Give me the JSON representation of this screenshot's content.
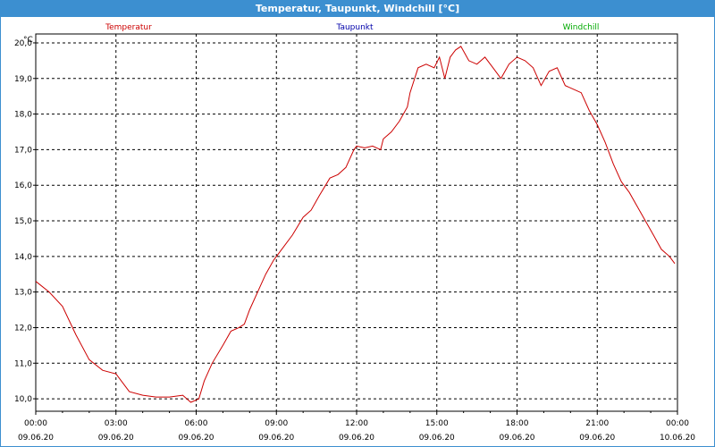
{
  "window": {
    "title": "Temperatur, Taupunkt, Windchill [°C]"
  },
  "colors": {
    "titlebar": "#3c8fd0",
    "temperature": "#cc0000",
    "dewpoint": "#0000aa",
    "windchill": "#00aa00",
    "grid": "#000000"
  },
  "chart_data": {
    "type": "line",
    "title": "Temperatur, Taupunkt, Windchill [°C]",
    "ylabel": "°C",
    "ylim": [
      9.65,
      20.25
    ],
    "xlim": [
      0,
      24
    ],
    "y_ticks": [
      "10,0",
      "11,0",
      "12,0",
      "13,0",
      "14,0",
      "15,0",
      "16,0",
      "17,0",
      "18,0",
      "19,0",
      "20,0"
    ],
    "y_tick_values": [
      10,
      11,
      12,
      13,
      14,
      15,
      16,
      17,
      18,
      19,
      20
    ],
    "x_ticks": [
      {
        "time": "00:00",
        "date": "09.06.20"
      },
      {
        "time": "03:00",
        "date": "09.06.20"
      },
      {
        "time": "06:00",
        "date": "09.06.20"
      },
      {
        "time": "09:00",
        "date": "09.06.20"
      },
      {
        "time": "12:00",
        "date": "09.06.20"
      },
      {
        "time": "15:00",
        "date": "09.06.20"
      },
      {
        "time": "18:00",
        "date": "09.06.20"
      },
      {
        "time": "21:00",
        "date": "09.06.20"
      },
      {
        "time": "00:00",
        "date": "10.06.20"
      }
    ],
    "grid": true,
    "legend": [
      "Temperatur",
      "Taupunkt",
      "Windchill"
    ],
    "series": [
      {
        "name": "Temperatur",
        "x": [
          0,
          0.5,
          1,
          1.5,
          2,
          2.5,
          3,
          3.5,
          4,
          4.5,
          5,
          5.5,
          5.8,
          6.1,
          6.3,
          6.6,
          7,
          7.3,
          7.6,
          7.8,
          8,
          8.3,
          8.6,
          8.9,
          9,
          9.3,
          9.6,
          10,
          10.3,
          10.6,
          11,
          11.3,
          11.6,
          11.9,
          12,
          12.3,
          12.6,
          12.9,
          13,
          13.3,
          13.6,
          13.9,
          14,
          14.3,
          14.6,
          14.9,
          15.1,
          15.3,
          15.5,
          15.7,
          15.9,
          16.2,
          16.5,
          16.8,
          17.1,
          17.4,
          17.7,
          18,
          18.3,
          18.6,
          18.9,
          19.2,
          19.5,
          19.8,
          20.1,
          20.4,
          20.7,
          21,
          21.3,
          21.6,
          21.9,
          22.2,
          22.5,
          22.8,
          23.1,
          23.4,
          23.7,
          23.9
        ],
        "values": [
          13.3,
          13.0,
          12.6,
          11.8,
          11.1,
          10.8,
          10.7,
          10.2,
          10.1,
          10.05,
          10.05,
          10.1,
          9.9,
          10.0,
          10.5,
          11.0,
          11.5,
          11.9,
          12.0,
          12.1,
          12.5,
          13.0,
          13.5,
          13.9,
          14.0,
          14.3,
          14.6,
          15.1,
          15.3,
          15.7,
          16.2,
          16.3,
          16.5,
          17.0,
          17.1,
          17.05,
          17.1,
          17.0,
          17.3,
          17.5,
          17.8,
          18.2,
          18.6,
          19.3,
          19.4,
          19.3,
          19.6,
          19.0,
          19.6,
          19.8,
          19.9,
          19.5,
          19.4,
          19.6,
          19.3,
          19.0,
          19.4,
          19.6,
          19.5,
          19.3,
          18.8,
          19.2,
          19.3,
          18.8,
          18.7,
          18.6,
          18.1,
          17.7,
          17.2,
          16.6,
          16.1,
          15.8,
          15.4,
          15.0,
          14.6,
          14.2,
          14.0,
          13.8
        ]
      }
    ]
  }
}
